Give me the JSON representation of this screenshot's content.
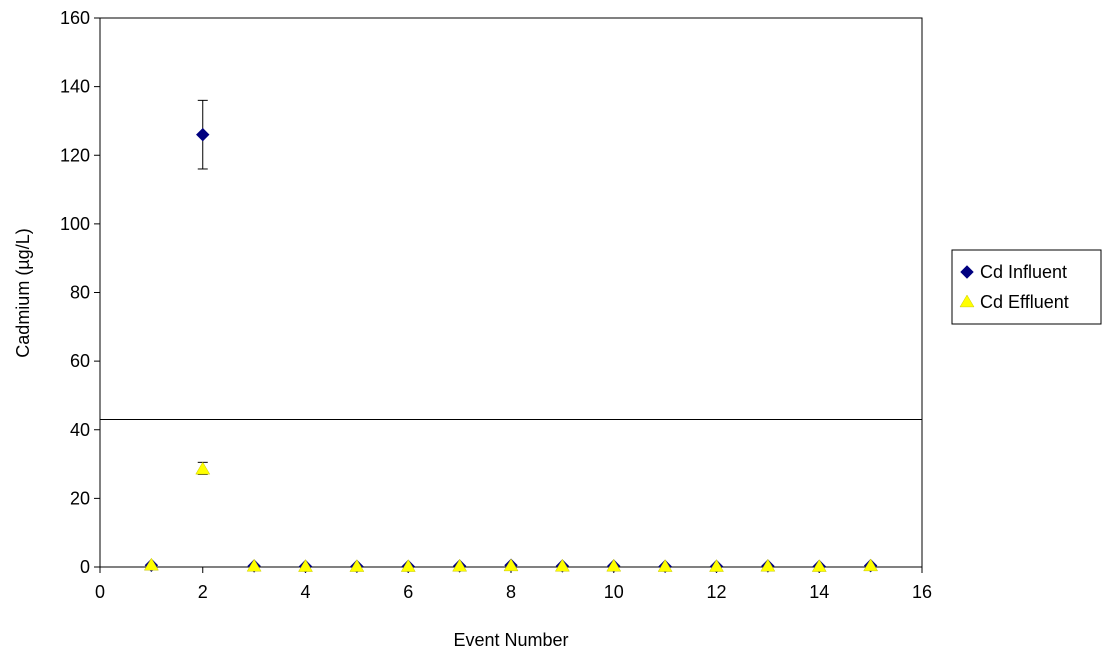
{
  "chart_data": {
    "type": "scatter",
    "title": "",
    "xlabel": "Event Number",
    "ylabel": "Cadmium (µg/L)",
    "xlim": [
      0,
      16
    ],
    "ylim": [
      0,
      160
    ],
    "xticks": [
      0,
      2,
      4,
      6,
      8,
      10,
      12,
      14,
      16
    ],
    "yticks": [
      0,
      20,
      40,
      60,
      80,
      100,
      120,
      140,
      160
    ],
    "grid": false,
    "legend_position": "right",
    "reference_line": {
      "y": 43
    },
    "series": [
      {
        "name": "Cd Influent",
        "marker": "diamond",
        "color": "#000080",
        "points": [
          {
            "x": 1,
            "y": 0.5
          },
          {
            "x": 2,
            "y": 126,
            "err_low": 116,
            "err_high": 136
          },
          {
            "x": 3,
            "y": 0.3
          },
          {
            "x": 4,
            "y": 0.2
          },
          {
            "x": 5,
            "y": 0.2
          },
          {
            "x": 6,
            "y": 0.2
          },
          {
            "x": 7,
            "y": 0.3
          },
          {
            "x": 8,
            "y": 0.5
          },
          {
            "x": 9,
            "y": 0.3
          },
          {
            "x": 10,
            "y": 0.3
          },
          {
            "x": 11,
            "y": 0.2
          },
          {
            "x": 12,
            "y": 0.2
          },
          {
            "x": 13,
            "y": 0.3
          },
          {
            "x": 14,
            "y": 0.2
          },
          {
            "x": 15,
            "y": 0.4
          }
        ]
      },
      {
        "name": "Cd Effluent",
        "marker": "triangle",
        "color": "#FFFF00",
        "points": [
          {
            "x": 1,
            "y": 0.5
          },
          {
            "x": 2,
            "y": 28.5,
            "err_low": 27,
            "err_high": 30.5
          },
          {
            "x": 3,
            "y": 0.2
          },
          {
            "x": 4,
            "y": 0.1
          },
          {
            "x": 5,
            "y": 0.1
          },
          {
            "x": 6,
            "y": 0.1
          },
          {
            "x": 7,
            "y": 0.2
          },
          {
            "x": 8,
            "y": 0.3
          },
          {
            "x": 9,
            "y": 0.2
          },
          {
            "x": 10,
            "y": 0.2
          },
          {
            "x": 11,
            "y": 0.1
          },
          {
            "x": 12,
            "y": 0.1
          },
          {
            "x": 13,
            "y": 0.2
          },
          {
            "x": 14,
            "y": 0.1
          },
          {
            "x": 15,
            "y": 0.3
          }
        ]
      }
    ]
  }
}
